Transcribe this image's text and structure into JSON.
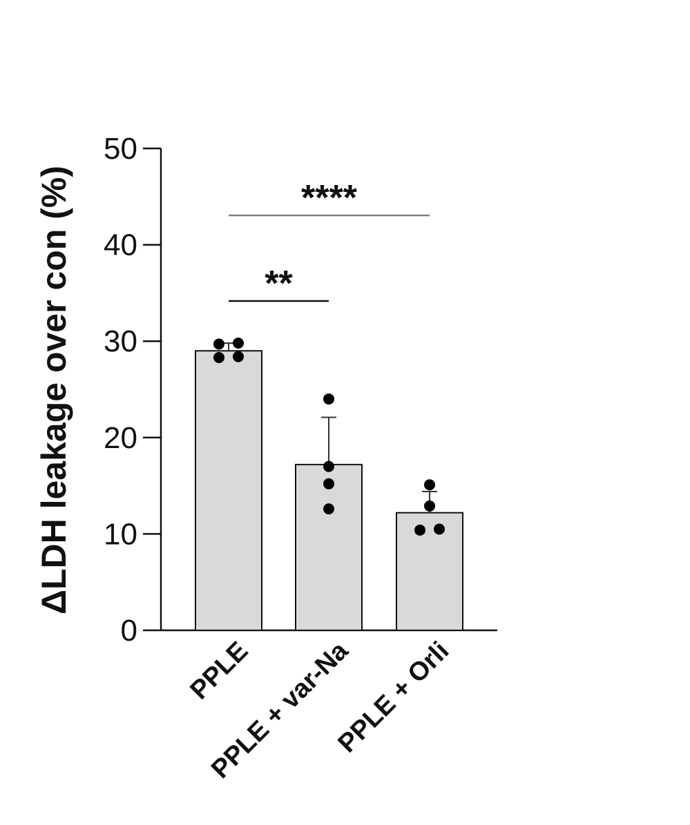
{
  "chart_data": {
    "type": "bar",
    "ylabel": "ΔLDH leakage over con (%)",
    "xlabel": "",
    "ylim": [
      0,
      50
    ],
    "yticks": [
      0,
      10,
      20,
      30,
      40,
      50
    ],
    "grid": false,
    "categories": [
      "PPLE",
      "PPLE + var-Na",
      "PPLE + Orli"
    ],
    "values": [
      29.0,
      17.2,
      12.2
    ],
    "error": [
      0.8,
      4.9,
      2.2
    ],
    "points": [
      [
        29.7,
        29.8,
        28.3,
        28.4
      ],
      [
        24.0,
        17.0,
        15.2,
        12.6
      ],
      [
        15.1,
        12.9,
        10.4,
        10.5
      ]
    ],
    "significance": [
      {
        "from": 0,
        "to": 1,
        "label": "**"
      },
      {
        "from": 0,
        "to": 2,
        "label": "****"
      }
    ],
    "colors": {
      "bar_fill": "#d9d9d9",
      "bar_stroke": "#111111",
      "bracket": "#808080",
      "point": "#000000"
    }
  }
}
